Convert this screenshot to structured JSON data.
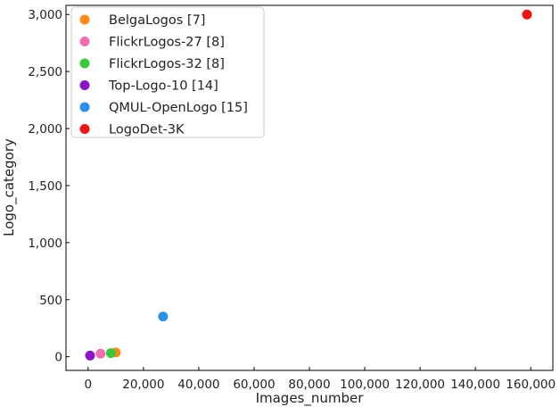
{
  "chart_data": {
    "type": "scatter",
    "title": "",
    "xlabel": "Images_number",
    "ylabel": "Logo_category",
    "xlim": [
      -8000,
      168000
    ],
    "ylim": [
      -120,
      3080
    ],
    "xticks": [
      0,
      20000,
      40000,
      60000,
      80000,
      100000,
      120000,
      140000,
      160000
    ],
    "xtick_labels": [
      "0",
      "20,000",
      "40,000",
      "60,000",
      "80,000",
      "100,000",
      "120,000",
      "140,000",
      "160,000"
    ],
    "yticks": [
      0,
      500,
      1000,
      1500,
      2000,
      2500,
      3000
    ],
    "ytick_labels": [
      "0",
      "500",
      "1,000",
      "1,500",
      "2,000",
      "2,500",
      "3,000"
    ],
    "grid": false,
    "legend_position": "top-left",
    "series": [
      {
        "name": "BelgaLogos [7]",
        "color": "#ff8c1a",
        "points": [
          [
            10000,
            37
          ]
        ]
      },
      {
        "name": "FlickrLogos-27 [8]",
        "color": "#f06eb0",
        "points": [
          [
            4500,
            27
          ]
        ]
      },
      {
        "name": "FlickrLogos-32 [8]",
        "color": "#3cc83c",
        "points": [
          [
            8240,
            32
          ]
        ]
      },
      {
        "name": "Top-Logo-10 [14]",
        "color": "#8a16c8",
        "points": [
          [
            700,
            10
          ]
        ]
      },
      {
        "name": "QMUL-OpenLogo [15]",
        "color": "#2a90e8",
        "points": [
          [
            27083,
            352
          ]
        ]
      },
      {
        "name": "LogoDet-3K",
        "color": "#ee1515",
        "points": [
          [
            158652,
            3000
          ]
        ]
      }
    ]
  }
}
